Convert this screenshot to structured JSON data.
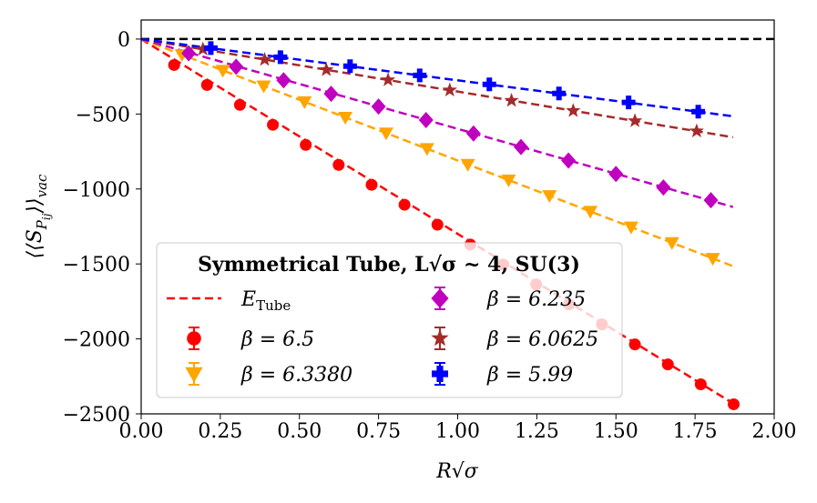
{
  "chart_data": {
    "type": "scatter",
    "xlabel_parts": [
      "R",
      "√σ"
    ],
    "ylabel_parts": [
      "⟨⟨S",
      "P",
      "ij",
      "⟩⟩",
      "vac"
    ],
    "xlim": [
      0,
      2.0
    ],
    "ylim": [
      -2500,
      127
    ],
    "xticks": [
      {
        "value": 0,
        "label": "0.00"
      },
      {
        "value": 0.25,
        "label": "0.25"
      },
      {
        "value": 0.5,
        "label": "0.50"
      },
      {
        "value": 0.75,
        "label": "0.75"
      },
      {
        "value": 1.0,
        "label": "1.00"
      },
      {
        "value": 1.25,
        "label": "1.25"
      },
      {
        "value": 1.5,
        "label": "1.50"
      },
      {
        "value": 1.75,
        "label": "1.75"
      },
      {
        "value": 2.0,
        "label": "2.00"
      }
    ],
    "yticks": [
      0,
      {
        "value": -500,
        "label": "−500"
      },
      {
        "value": -1000,
        "label": "−1000"
      },
      {
        "value": -1500,
        "label": "−1500"
      },
      {
        "value": -2000,
        "label": "−2000"
      },
      {
        "value": -2500,
        "label": "−2500"
      }
    ],
    "hline": 0,
    "legend_title": "Symmetrical Tube, L√σ ~ 4, SU(3)",
    "fit_label_parts": [
      "E",
      "Tube"
    ],
    "series": [
      {
        "name": "β = 6.5",
        "color": "#ff0000",
        "marker": "circle",
        "x": [
          0.104,
          0.208,
          0.312,
          0.416,
          0.52,
          0.624,
          0.728,
          0.832,
          0.936,
          1.04,
          1.144,
          1.248,
          1.352,
          1.456,
          1.56,
          1.664,
          1.768,
          1.872
        ],
        "values": [
          -173,
          -306,
          -439,
          -572,
          -706,
          -839,
          -972,
          -1105,
          -1238,
          -1371,
          -1504,
          -1637,
          -1770,
          -1903,
          -2037,
          -2170,
          -2303,
          -2436
        ],
        "line_x": [
          0,
          1.87
        ],
        "line_values": [
          0,
          -2430
        ]
      },
      {
        "name": "β = 6.3380",
        "color": "#ffa500",
        "marker": "triangle-down",
        "x": [
          0.129,
          0.258,
          0.387,
          0.516,
          0.645,
          0.774,
          0.903,
          1.032,
          1.161,
          1.29,
          1.419,
          1.548,
          1.677,
          1.806
        ],
        "values": [
          -104,
          -209,
          -313,
          -418,
          -522,
          -627,
          -731,
          -836,
          -940,
          -1045,
          -1149,
          -1254,
          -1358,
          -1463
        ],
        "line_x": [
          0,
          1.87
        ],
        "line_values": [
          0,
          -1515
        ]
      },
      {
        "name": "β = 6.235",
        "color": "#bf00bf",
        "marker": "diamond",
        "x": [
          0.15,
          0.3,
          0.45,
          0.6,
          0.75,
          0.9,
          1.05,
          1.2,
          1.35,
          1.5,
          1.65,
          1.8
        ],
        "values": [
          -95,
          -185,
          -275,
          -365,
          -450,
          -540,
          -630,
          -720,
          -810,
          -900,
          -990,
          -1075
        ],
        "line_x": [
          0,
          1.87
        ],
        "line_values": [
          0,
          -1120
        ]
      },
      {
        "name": "β = 6.0625",
        "color": "#a52a2a",
        "marker": "star",
        "x": [
          0.195,
          0.39,
          0.585,
          0.78,
          0.975,
          1.17,
          1.365,
          1.56,
          1.755
        ],
        "values": [
          -68,
          -137,
          -205,
          -273,
          -341,
          -410,
          -478,
          -546,
          -614
        ],
        "line_x": [
          0,
          1.87
        ],
        "line_values": [
          0,
          -655
        ]
      },
      {
        "name": "β = 5.99",
        "color": "#0000ff",
        "marker": "plus",
        "x": [
          0.22,
          0.44,
          0.66,
          0.88,
          1.1,
          1.32,
          1.54,
          1.76
        ],
        "values": [
          -60,
          -121,
          -181,
          -242,
          -302,
          -363,
          -423,
          -484
        ],
        "line_x": [
          0,
          1.87
        ],
        "line_values": [
          0,
          -515
        ]
      }
    ]
  }
}
